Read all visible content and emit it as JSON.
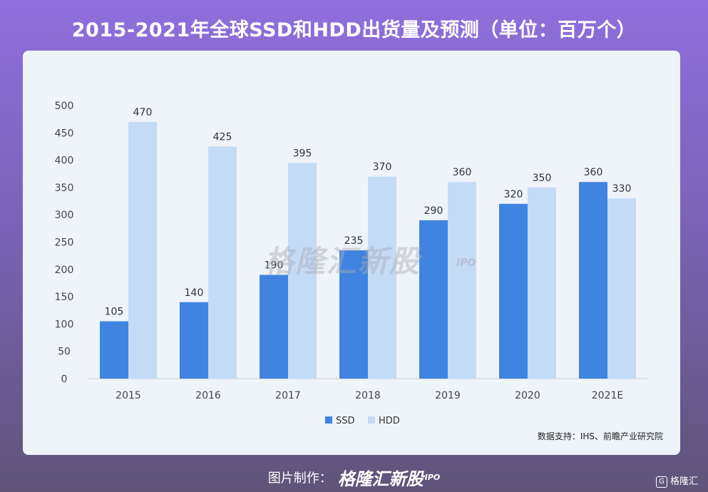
{
  "title": "2015-2021年全球SSD和HDD出货量及预测（单位：百万个）",
  "source": "数据支持：IHS、前瞻产业研究院",
  "watermark": {
    "text": "格隆汇新股",
    "sub": "IPO"
  },
  "footer": {
    "label": "图片制作：",
    "brand": "格隆汇新股",
    "brand_sub": "IPO",
    "corner_logo": "格隆汇"
  },
  "colors": {
    "ssd": "#3f84e0",
    "hdd": "#c4dbf6"
  },
  "chart_data": {
    "type": "bar",
    "categories": [
      "2015",
      "2016",
      "2017",
      "2018",
      "2019",
      "2020",
      "2021E"
    ],
    "series": [
      {
        "name": "SSD",
        "values": [
          105,
          140,
          190,
          235,
          290,
          320,
          360
        ]
      },
      {
        "name": "HDD",
        "values": [
          470,
          425,
          395,
          370,
          360,
          350,
          330
        ]
      }
    ],
    "ylim": [
      0,
      500
    ],
    "yticks": [
      0,
      50,
      100,
      150,
      200,
      250,
      300,
      350,
      400,
      450,
      500
    ],
    "legend_position": "bottom-center"
  }
}
